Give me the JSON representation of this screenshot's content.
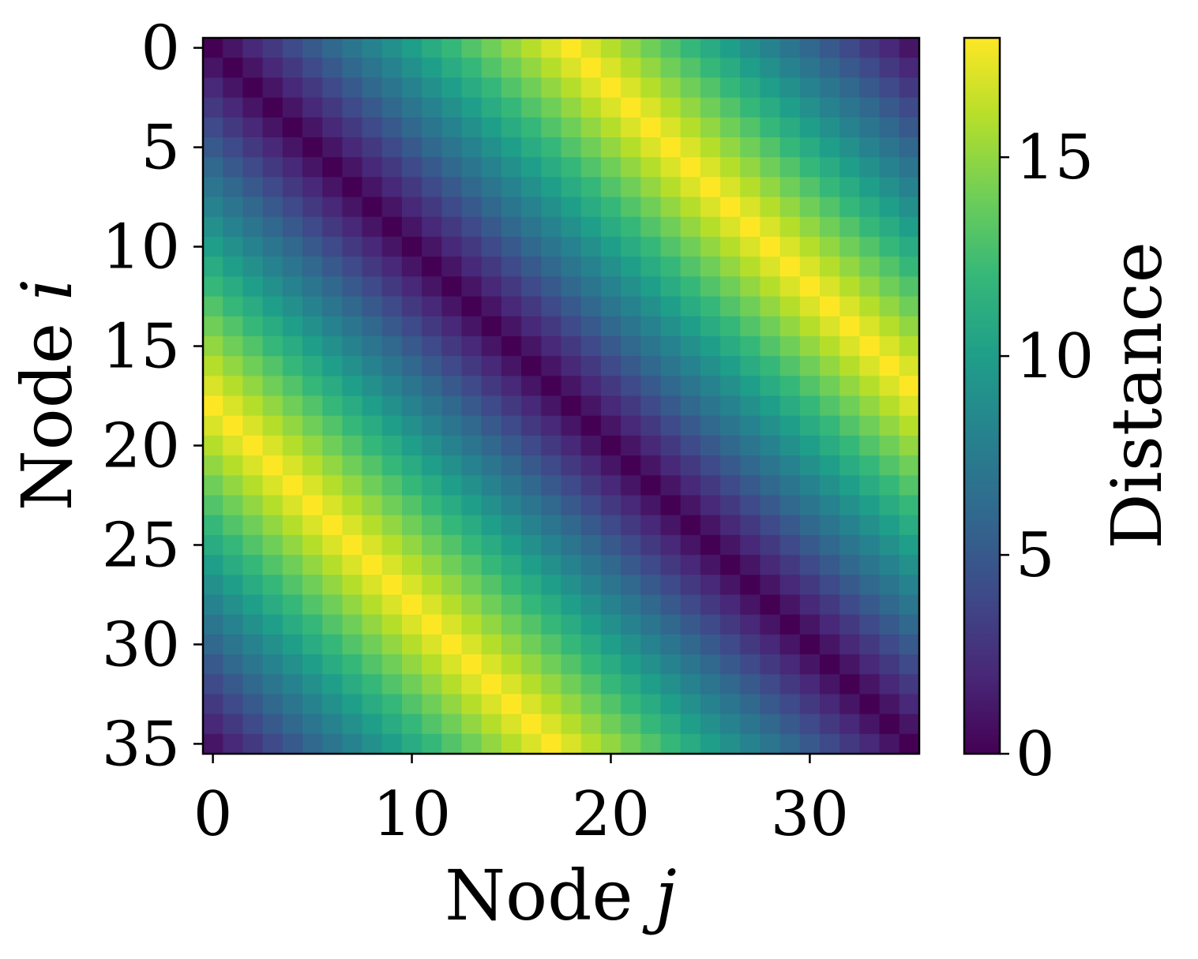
{
  "chart_data": {
    "type": "heatmap",
    "title": "",
    "xlabel": {
      "prefix": "Node ",
      "var": "j"
    },
    "ylabel": {
      "prefix": "Node ",
      "var": "i"
    },
    "colorbar_label": "Distance",
    "n_nodes": 36,
    "matrix_rule": "distance(i, j) = min(|i - j|, 36 - |i - j|) — shortest-path distance on a 36-node ring",
    "x_ticks": [
      0,
      10,
      20,
      30
    ],
    "y_ticks": [
      0,
      5,
      10,
      15,
      20,
      25,
      30,
      35
    ],
    "colorbar_range": [
      0,
      18
    ],
    "colorbar_ticks": [
      0,
      5,
      10,
      15
    ],
    "colormap": "viridis",
    "colormap_stops": [
      "#440154",
      "#482878",
      "#3e4a89",
      "#31688e",
      "#26828e",
      "#1f9e89",
      "#35b779",
      "#6ece58",
      "#b5de2b",
      "#fde725"
    ]
  }
}
